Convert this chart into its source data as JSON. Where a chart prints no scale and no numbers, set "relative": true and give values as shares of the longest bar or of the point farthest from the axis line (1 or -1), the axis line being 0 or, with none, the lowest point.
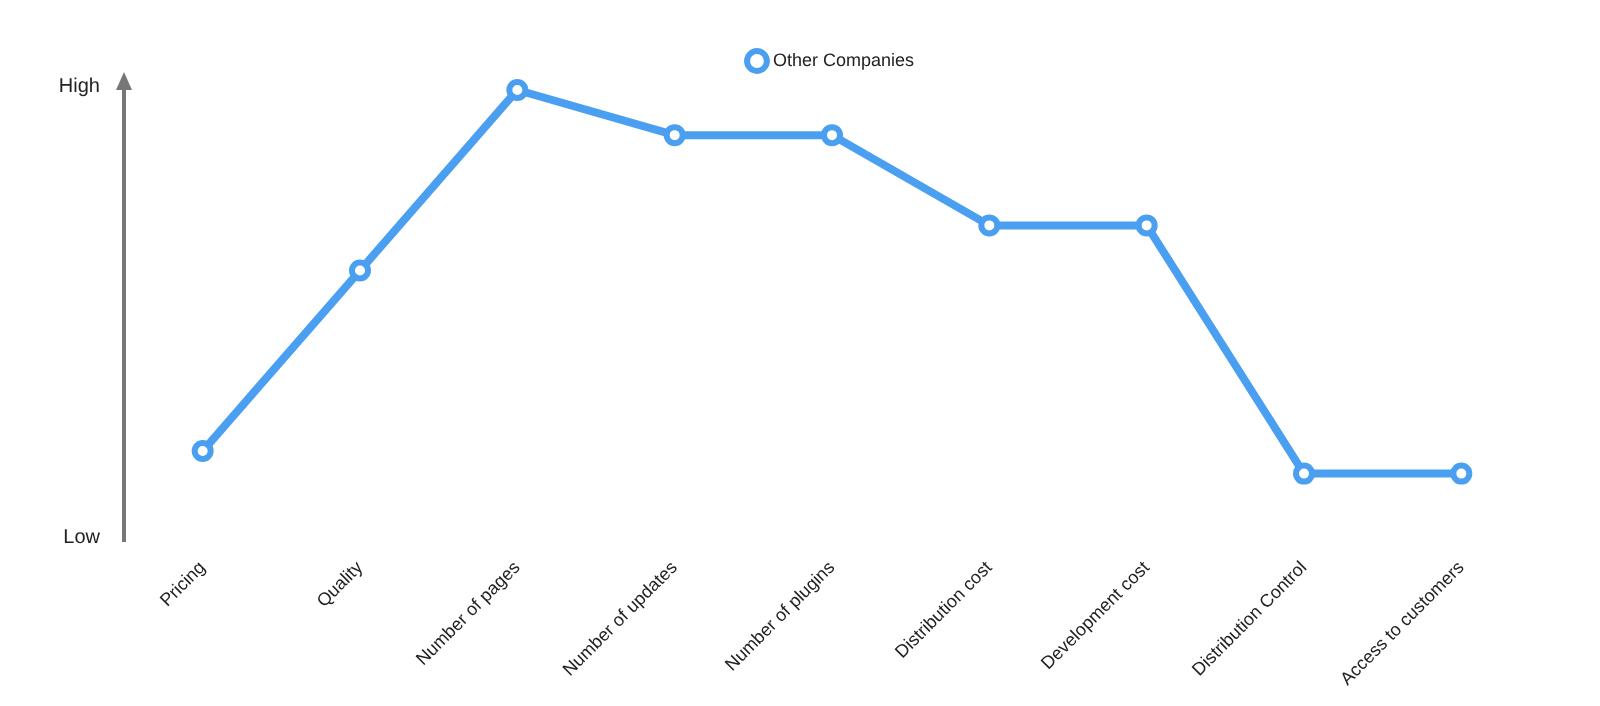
{
  "chart_data": {
    "type": "line",
    "relative": true,
    "categories": [
      "Pricing",
      "Quality",
      "Number of pages",
      "Number of updates",
      "Number of plugins",
      "Distribution cost",
      "Development cost",
      "Distribution Control",
      "Access to customers"
    ],
    "series": [
      {
        "name": "Other Companies",
        "color": "#4a9ff0",
        "values": [
          0.2,
          0.6,
          1,
          0.9,
          0.9,
          0.7,
          0.7,
          0.15,
          0.15
        ]
      }
    ],
    "annotations": [
      "High",
      "Low"
    ],
    "legend": "top",
    "marker": "circle",
    "line_style": "solid"
  }
}
